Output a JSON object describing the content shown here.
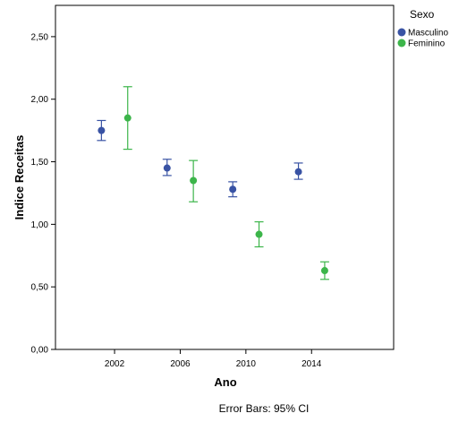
{
  "chart_data": {
    "type": "scatter",
    "xlabel": "Ano",
    "ylabel": "Indice Receitas",
    "footnote": "Error Bars: 95% CI",
    "x_ticks": [
      "2002",
      "2006",
      "2010",
      "2014"
    ],
    "y_ticks": [
      "0,00",
      "0,50",
      "1,00",
      "1,50",
      "2,00",
      "2,50"
    ],
    "ylim": [
      0,
      2.75
    ],
    "legend": {
      "title": "Sexo",
      "placement": "outside-right"
    },
    "grid": false,
    "series": [
      {
        "name": "Masculino",
        "color": "#3953a4",
        "points": [
          {
            "x": 2001.2,
            "y": 1.75,
            "low": 1.67,
            "high": 1.83
          },
          {
            "x": 2005.2,
            "y": 1.45,
            "low": 1.39,
            "high": 1.52
          },
          {
            "x": 2009.2,
            "y": 1.28,
            "low": 1.22,
            "high": 1.34
          },
          {
            "x": 2013.2,
            "y": 1.42,
            "low": 1.36,
            "high": 1.49
          }
        ]
      },
      {
        "name": "Feminino",
        "color": "#3cb54a",
        "points": [
          {
            "x": 2002.8,
            "y": 1.85,
            "low": 1.6,
            "high": 2.1
          },
          {
            "x": 2006.8,
            "y": 1.35,
            "low": 1.18,
            "high": 1.51
          },
          {
            "x": 2010.8,
            "y": 0.92,
            "low": 0.82,
            "high": 1.02
          },
          {
            "x": 2014.8,
            "y": 0.63,
            "low": 0.56,
            "high": 0.7
          }
        ]
      }
    ]
  }
}
